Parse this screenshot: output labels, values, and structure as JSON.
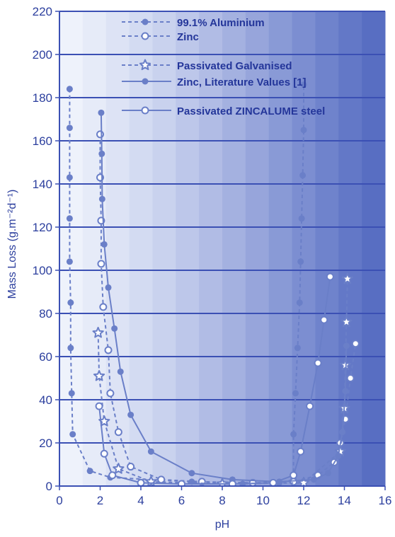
{
  "chart_data": {
    "type": "line",
    "xlabel": "pH",
    "ylabel": "Mass Loss (g.m⁻²d⁻¹)",
    "xlim": [
      0,
      16
    ],
    "ylim": [
      0,
      220
    ],
    "xticks": [
      "0",
      "2",
      "4",
      "6",
      "8",
      "10",
      "12",
      "14",
      "16"
    ],
    "yticks": [
      "0",
      "20",
      "40",
      "60",
      "80",
      "100",
      "120",
      "140",
      "160",
      "180",
      "200",
      "220"
    ],
    "grid": "horizontal",
    "legend_position": "top-center",
    "background": "gradient, pale blue at left to darker blue at right",
    "colors": {
      "series": "#6a7fc8",
      "axis_text": "#2c3f9e",
      "legend_text": "#24369a",
      "grid": "#3b50b4"
    },
    "series": [
      {
        "name": "99.1% Aluminium",
        "line": "dashed",
        "marker": "filled-circle",
        "points": [
          [
            0.5,
            184
          ],
          [
            0.5,
            166
          ],
          [
            0.5,
            143
          ],
          [
            0.5,
            124
          ],
          [
            0.5,
            104
          ],
          [
            0.55,
            85
          ],
          [
            0.55,
            64
          ],
          [
            0.6,
            43
          ],
          [
            0.65,
            24
          ],
          [
            1.5,
            7
          ],
          [
            2.5,
            4
          ],
          [
            6.5,
            2
          ],
          [
            9,
            1
          ],
          [
            10.8,
            1.5
          ],
          [
            11.5,
            3
          ],
          [
            11.5,
            24
          ],
          [
            11.6,
            43
          ],
          [
            11.7,
            64
          ],
          [
            11.8,
            85
          ],
          [
            11.85,
            104
          ],
          [
            11.9,
            124
          ],
          [
            11.95,
            144
          ],
          [
            12,
            165
          ],
          [
            12,
            186
          ]
        ]
      },
      {
        "name": "Zinc",
        "line": "dashed",
        "marker": "open-circle",
        "points": [
          [
            2,
            163
          ],
          [
            2,
            143
          ],
          [
            2.05,
            123
          ],
          [
            2.05,
            103
          ],
          [
            2.15,
            83
          ],
          [
            2.4,
            63
          ],
          [
            2.5,
            43
          ],
          [
            2.9,
            25
          ],
          [
            3.5,
            9
          ],
          [
            5,
            3
          ],
          [
            7,
            2
          ],
          [
            9.5,
            1.5
          ],
          [
            11.5,
            2
          ],
          [
            12.7,
            5
          ],
          [
            13.5,
            11
          ],
          [
            13.8,
            20
          ],
          [
            14.05,
            31
          ],
          [
            14.3,
            50
          ],
          [
            14.55,
            66
          ]
        ]
      },
      {
        "name": "Passivated Galvanised",
        "line": "dashed",
        "marker": "open-star",
        "points": [
          [
            1.9,
            71
          ],
          [
            1.95,
            51
          ],
          [
            2.2,
            30
          ],
          [
            2.9,
            8
          ],
          [
            4.5,
            2
          ],
          [
            8,
            1
          ],
          [
            12,
            1.5
          ],
          [
            13.8,
            16
          ],
          [
            14,
            36
          ],
          [
            14.05,
            56
          ],
          [
            14.1,
            76
          ],
          [
            14.15,
            96
          ]
        ]
      },
      {
        "name": "Zinc, Literature Values [1]",
        "line": "solid",
        "marker": "filled-circle",
        "points": [
          [
            2.05,
            173
          ],
          [
            2.08,
            154
          ],
          [
            2.1,
            133
          ],
          [
            2.2,
            112
          ],
          [
            2.4,
            92
          ],
          [
            2.7,
            73
          ],
          [
            3,
            53
          ],
          [
            3.5,
            33
          ],
          [
            4.5,
            16
          ],
          [
            6.5,
            6
          ],
          [
            8.5,
            3
          ],
          [
            10.8,
            2
          ],
          [
            12.5,
            3
          ],
          [
            13.2,
            6
          ],
          [
            13.7,
            14
          ],
          [
            13.9,
            25
          ],
          [
            14.05,
            44
          ],
          [
            14.1,
            65
          ]
        ]
      },
      {
        "name": "Passivated ZINCALUME steel",
        "line": "solid",
        "marker": "open-circle",
        "points": [
          [
            1.95,
            37
          ],
          [
            2.2,
            15
          ],
          [
            2.6,
            5
          ],
          [
            4,
            1.5
          ],
          [
            6,
            1
          ],
          [
            8.5,
            1
          ],
          [
            10.5,
            1.5
          ],
          [
            11.5,
            5
          ],
          [
            11.85,
            16
          ],
          [
            12.3,
            37
          ],
          [
            12.7,
            57
          ],
          [
            13,
            77
          ],
          [
            13.3,
            97
          ]
        ]
      }
    ]
  }
}
